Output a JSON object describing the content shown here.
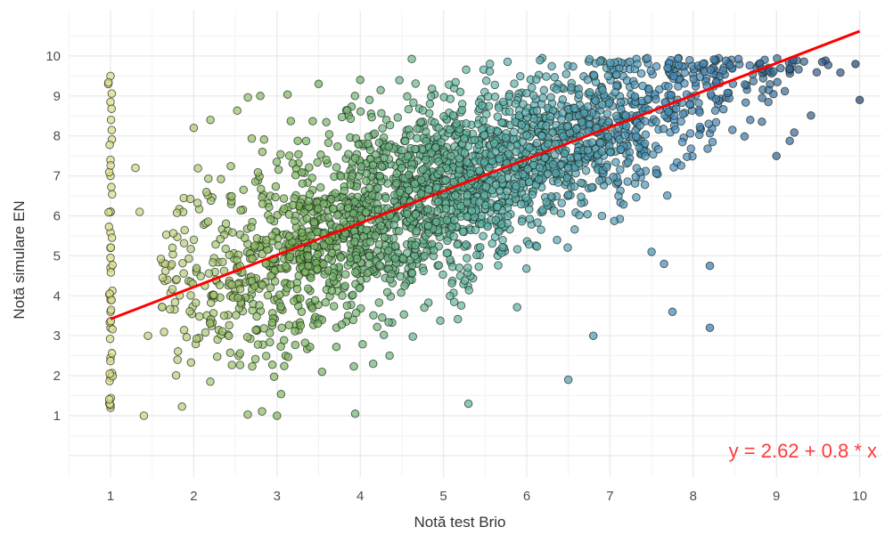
{
  "chart_data": {
    "type": "scatter",
    "title": "",
    "xlabel": "Notă test Brio",
    "ylabel": "Notă simulare EN",
    "xlim": [
      0.5,
      10.15
    ],
    "ylim": [
      0,
      10.85
    ],
    "x_ticks": [
      1,
      2,
      3,
      4,
      5,
      6,
      7,
      8,
      9,
      10
    ],
    "y_ticks": [
      1,
      2,
      3,
      4,
      5,
      6,
      7,
      8,
      9,
      10
    ],
    "grid": true,
    "legend": "none",
    "colors": {
      "low": "#dcdc8c",
      "mid_low": "#7ab35a",
      "mid": "#5fb5aa",
      "mid_high": "#4a8fc0",
      "high": "#2b4c7e",
      "point_stroke": "#1e2a1e",
      "trend_line": "#ff0000",
      "equation_text": "#ff3b3b",
      "grid": "#e8e8e8"
    },
    "series": [
      {
        "values_sample": [
          [
            1,
            9.5
          ],
          [
            1,
            8.85
          ],
          [
            1,
            7.4
          ],
          [
            1,
            7.0
          ],
          [
            1,
            6.1
          ],
          [
            1,
            5.2
          ],
          [
            1,
            4.95
          ],
          [
            1,
            4.7
          ],
          [
            1,
            3.9
          ],
          [
            1,
            3.6
          ],
          [
            1,
            3.2
          ],
          [
            1,
            2.45
          ],
          [
            1,
            1.95
          ],
          [
            1,
            1.2
          ],
          [
            1.3,
            7.2
          ],
          [
            1.4,
            1.0
          ],
          [
            1.35,
            6.1
          ],
          [
            1.45,
            3.0
          ],
          [
            2.0,
            8.2
          ],
          [
            2.2,
            8.4
          ],
          [
            2.8,
            9.0
          ],
          [
            3.0,
            1.0
          ],
          [
            3.5,
            9.3
          ],
          [
            4.0,
            9.4
          ],
          [
            5.3,
            1.3
          ],
          [
            6.5,
            1.9
          ],
          [
            6.8,
            3.0
          ],
          [
            7.5,
            5.1
          ],
          [
            7.65,
            4.8
          ],
          [
            7.75,
            3.6
          ],
          [
            8.2,
            4.75
          ],
          [
            8.2,
            3.2
          ],
          [
            9.0,
            7.5
          ],
          [
            9.2,
            9.9
          ],
          [
            9.55,
            9.85
          ],
          [
            9.95,
            9.8
          ],
          [
            10.0,
            8.9
          ]
        ]
      }
    ],
    "trend_line": {
      "intercept": 2.62,
      "slope": 0.8,
      "x_range": [
        1,
        10
      ]
    },
    "annotation": "y = 2.62 + 0.8 * x"
  }
}
